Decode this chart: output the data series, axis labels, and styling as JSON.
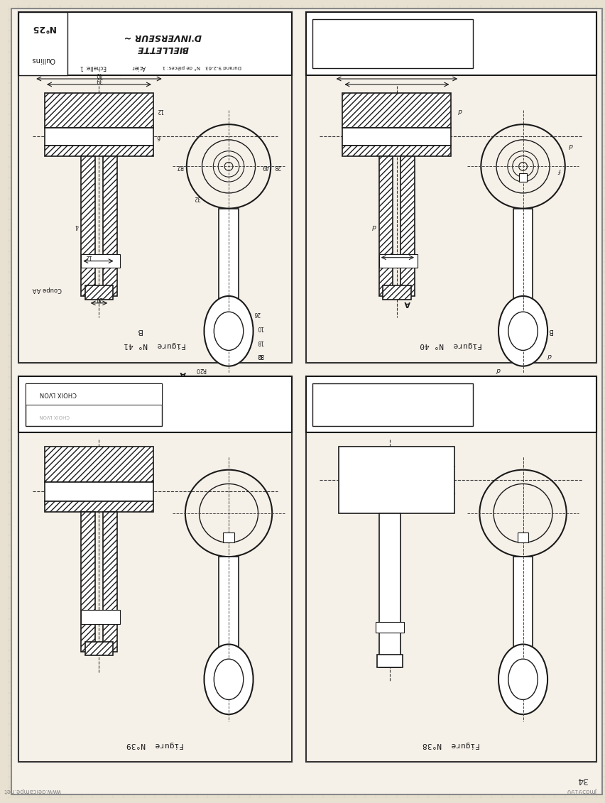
{
  "page_bg": "#e8e0d0",
  "drawing_bg": "#f5f0e8",
  "line_color": "#1a1a1a",
  "hatch_color": "#1a1a1a",
  "grid_color": "#c8d0c0",
  "title_text_1": "BIELLETTE",
  "title_text_2": "D'INVERSEUR ~",
  "title_no": "N°25",
  "title_oullins": "Oullins",
  "title_echelle": "Echelle: 1",
  "title_acier": "Acier",
  "title_npieces": "N° de pièces: 1",
  "title_durand": "Durand 9-2-63",
  "fig40_label": "Figure  N° 40",
  "fig41_label": "Figure  N° 41",
  "fig38_label": "Figure  N°38",
  "fig39_label": "Figure  N°39",
  "page_num": "34",
  "watermark": "jmd59190"
}
